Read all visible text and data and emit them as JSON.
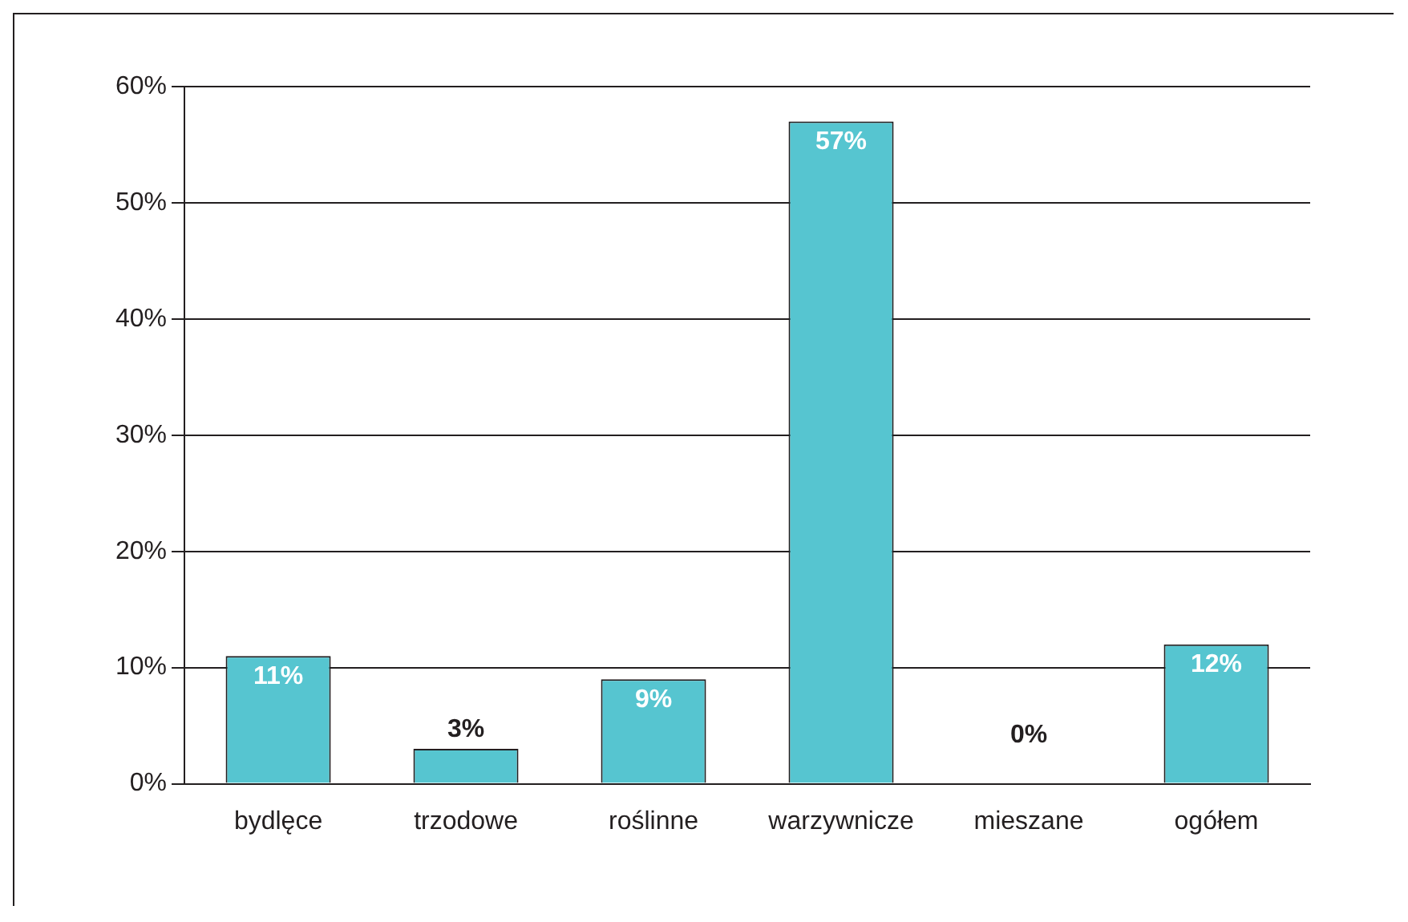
{
  "chart_data": {
    "type": "bar",
    "categories": [
      "bydlęce",
      "trzodowe",
      "roślinne",
      "warzywnicze",
      "mieszane",
      "ogółem"
    ],
    "values": [
      11,
      3,
      9,
      57,
      0,
      12
    ],
    "value_labels": [
      "11%",
      "3%",
      "9%",
      "57%",
      "0%",
      "12%"
    ],
    "color": "#56c5d0",
    "ylim": [
      0,
      60
    ],
    "yticks": [
      {
        "value": 0,
        "label": "0%"
      },
      {
        "value": 10,
        "label": "10%"
      },
      {
        "value": 20,
        "label": "20%"
      },
      {
        "value": 30,
        "label": "30%"
      },
      {
        "value": 40,
        "label": "40%"
      },
      {
        "value": 50,
        "label": "50%"
      },
      {
        "value": 60,
        "label": "60%"
      }
    ],
    "grid": "y",
    "legend": false
  }
}
